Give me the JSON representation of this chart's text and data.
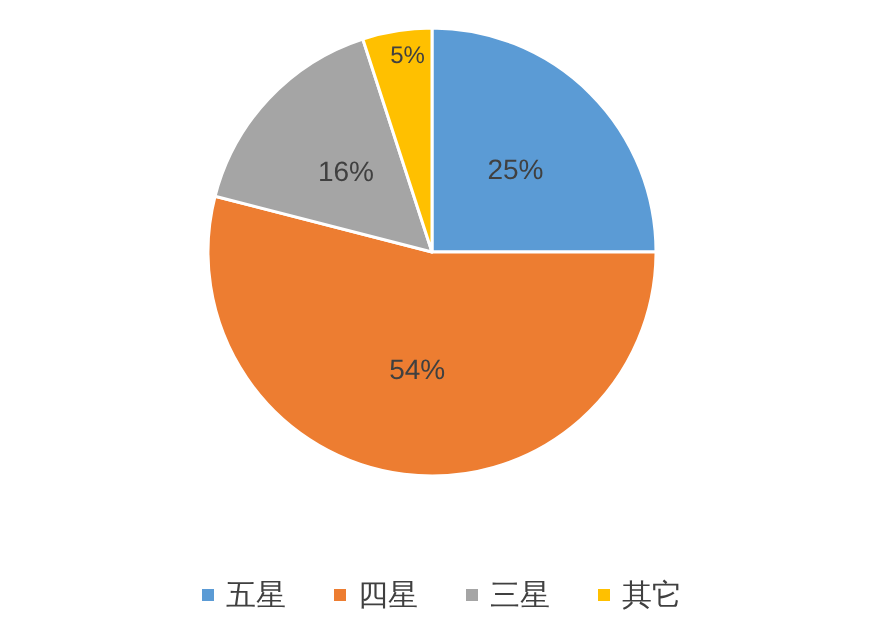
{
  "chart_data": {
    "type": "pie",
    "categories": [
      "五星",
      "四星",
      "三星",
      "其它"
    ],
    "values": [
      25,
      54,
      16,
      5
    ],
    "colors": [
      "#5b9bd5",
      "#ed7d31",
      "#a5a5a5",
      "#ffc000"
    ],
    "value_labels": [
      "25%",
      "54%",
      "16%",
      "5%"
    ],
    "legend": "bottom"
  }
}
